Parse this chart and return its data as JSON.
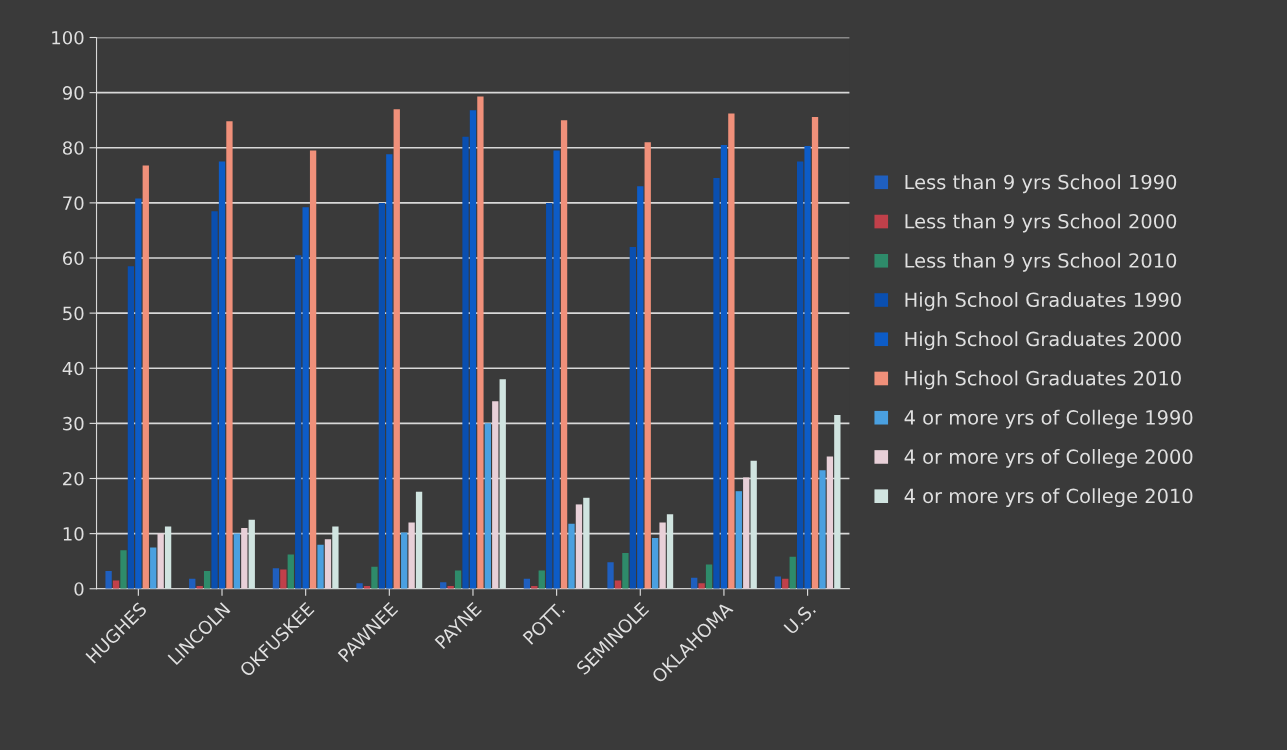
{
  "chart_data": {
    "type": "bar",
    "categories": [
      "HUGHES",
      "LINCOLN",
      "OKFUSKEE",
      "PAWNEE",
      "PAYNE",
      "POTT.",
      "SEMINOLE",
      "OKLAHOMA",
      "U.S."
    ],
    "series": [
      {
        "name": "Less than 9 yrs School 1990",
        "color": "#1f5fbf",
        "values": [
          3.2,
          1.8,
          3.7,
          1,
          1.2,
          1.8,
          4.8,
          2,
          2.2
        ]
      },
      {
        "name": "Less than 9 yrs School 2000",
        "color": "#c0404a",
        "values": [
          1.5,
          0.5,
          3.5,
          0.5,
          0.5,
          0.5,
          1.5,
          1,
          1.8
        ]
      },
      {
        "name": "Less than 9 yrs School 2010",
        "color": "#2e8b6a",
        "values": [
          7,
          3.2,
          6.2,
          4,
          3.3,
          3.3,
          6.5,
          4.4,
          5.8
        ]
      },
      {
        "name": "High School Graduates 1990",
        "color": "#0a4fb0",
        "values": [
          58.5,
          68.5,
          60.5,
          70,
          82,
          70,
          62,
          74.5,
          77.5
        ]
      },
      {
        "name": "High School Graduates 2000",
        "color": "#0d5cc7",
        "values": [
          70.8,
          77.5,
          69.2,
          78.8,
          86.8,
          79.5,
          73,
          80.5,
          80.3
        ]
      },
      {
        "name": "High School Graduates 2010",
        "color": "#f0907a",
        "values": [
          76.8,
          84.8,
          79.5,
          87,
          89.3,
          85,
          81,
          86.2,
          85.6
        ]
      },
      {
        "name": "4 or more yrs of College 1990",
        "color": "#4aa0e0",
        "values": [
          7.5,
          10,
          8,
          10.2,
          30,
          11.8,
          9.2,
          17.7,
          21.5
        ]
      },
      {
        "name": "4 or more yrs of College 2000",
        "color": "#e8d0d8",
        "values": [
          10,
          11,
          9,
          12,
          34,
          15.3,
          12,
          20.2,
          24
        ]
      },
      {
        "name": "4 or more yrs of College 2010",
        "color": "#d0e4e0",
        "values": [
          11.3,
          12.5,
          11.3,
          17.6,
          38,
          16.5,
          13.5,
          23.2,
          31.5
        ]
      }
    ],
    "ylim": [
      0,
      100
    ],
    "yticks": [
      0,
      10,
      20,
      30,
      40,
      50,
      60,
      70,
      80,
      90,
      100
    ],
    "grid": "y",
    "legend": "right"
  }
}
